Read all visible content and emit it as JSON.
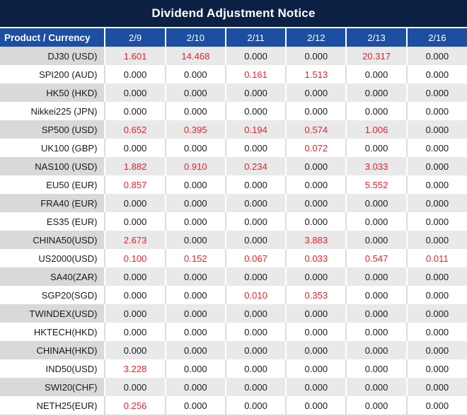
{
  "title": "Dividend Adjustment Notice",
  "table": {
    "product_header": "Product / Currency",
    "date_headers": [
      "2/9",
      "2/10",
      "2/11",
      "2/12",
      "2/13",
      "2/16"
    ],
    "rows": [
      {
        "product": "DJ30 (USD)",
        "values": [
          "1.601",
          "14.468",
          "0.000",
          "0.000",
          "20.317",
          "0.000"
        ]
      },
      {
        "product": "SPI200 (AUD)",
        "values": [
          "0.000",
          "0.000",
          "0.161",
          "1.513",
          "0.000",
          "0.000"
        ]
      },
      {
        "product": "HK50 (HKD)",
        "values": [
          "0.000",
          "0.000",
          "0.000",
          "0.000",
          "0.000",
          "0.000"
        ]
      },
      {
        "product": "Nikkei225 (JPN)",
        "values": [
          "0.000",
          "0.000",
          "0.000",
          "0.000",
          "0.000",
          "0.000"
        ]
      },
      {
        "product": "SP500 (USD)",
        "values": [
          "0.652",
          "0.395",
          "0.194",
          "0.574",
          "1.006",
          "0.000"
        ]
      },
      {
        "product": "UK100 (GBP)",
        "values": [
          "0.000",
          "0.000",
          "0.000",
          "0.072",
          "0.000",
          "0.000"
        ]
      },
      {
        "product": "NAS100 (USD)",
        "values": [
          "1.882",
          "0.910",
          "0.234",
          "0.000",
          "3.033",
          "0.000"
        ]
      },
      {
        "product": "EU50 (EUR)",
        "values": [
          "0.857",
          "0.000",
          "0.000",
          "0.000",
          "5.552",
          "0.000"
        ]
      },
      {
        "product": "FRA40 (EUR)",
        "values": [
          "0.000",
          "0.000",
          "0.000",
          "0.000",
          "0.000",
          "0.000"
        ]
      },
      {
        "product": "ES35 (EUR)",
        "values": [
          "0.000",
          "0.000",
          "0.000",
          "0.000",
          "0.000",
          "0.000"
        ]
      },
      {
        "product": "CHINA50(USD)",
        "values": [
          "2.673",
          "0.000",
          "0.000",
          "3.883",
          "0.000",
          "0.000"
        ]
      },
      {
        "product": "US2000(USD)",
        "values": [
          "0.100",
          "0.152",
          "0.067",
          "0.033",
          "0.547",
          "0.011"
        ]
      },
      {
        "product": "SA40(ZAR)",
        "values": [
          "0.000",
          "0.000",
          "0.000",
          "0.000",
          "0.000",
          "0.000"
        ]
      },
      {
        "product": "SGP20(SGD)",
        "values": [
          "0.000",
          "0.000",
          "0.010",
          "0.353",
          "0.000",
          "0.000"
        ]
      },
      {
        "product": "TWINDEX(USD)",
        "values": [
          "0.000",
          "0.000",
          "0.000",
          "0.000",
          "0.000",
          "0.000"
        ]
      },
      {
        "product": "HKTECH(HKD)",
        "values": [
          "0.000",
          "0.000",
          "0.000",
          "0.000",
          "0.000",
          "0.000"
        ]
      },
      {
        "product": "CHINAH(HKD)",
        "values": [
          "0.000",
          "0.000",
          "0.000",
          "0.000",
          "0.000",
          "0.000"
        ]
      },
      {
        "product": "IND50(USD)",
        "values": [
          "3.228",
          "0.000",
          "0.000",
          "0.000",
          "0.000",
          "0.000"
        ]
      },
      {
        "product": "SWI20(CHF)",
        "values": [
          "0.000",
          "0.000",
          "0.000",
          "0.000",
          "0.000",
          "0.000"
        ]
      },
      {
        "product": "NETH25(EUR)",
        "values": [
          "0.256",
          "0.000",
          "0.000",
          "0.000",
          "0.000",
          "0.000"
        ]
      }
    ]
  },
  "colors": {
    "title_bg": "#0c2044",
    "header_bg": "#1c4ea1",
    "stripe_bg": "#e9e9e9",
    "stripe_product_bg": "#d9d9d9",
    "nonzero_value_color": "#e4202c",
    "text_color": "#1a1a1a"
  }
}
